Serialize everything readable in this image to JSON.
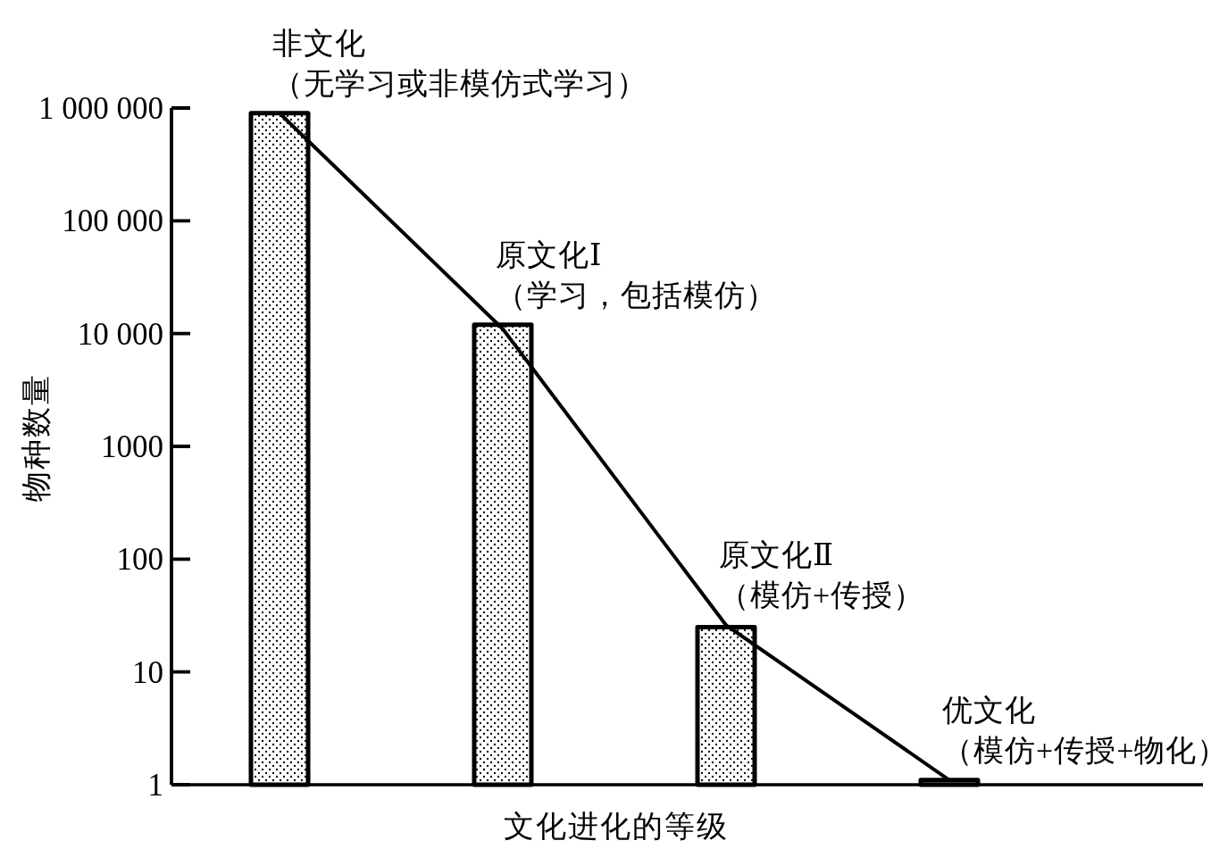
{
  "chart_data": {
    "type": "bar",
    "xlabel": "文化进化的等级",
    "ylabel": "物种数量",
    "categories": [
      null,
      null,
      null,
      null
    ],
    "series": [
      {
        "color": "#000000",
        "values": [
          900000,
          12000,
          25,
          1.1
        ]
      },
      {
        "type": "line",
        "color": "#000000",
        "values": [
          900000,
          11000,
          26,
          1.1
        ]
      }
    ],
    "annotations": [
      "非文化（无学习或非模仿式学习）",
      "原文化Ⅰ（学习，包括模仿）",
      "原文化Ⅱ（模仿+传授）",
      "优文化（模仿+传授+物化）"
    ],
    "log": "y",
    "ylim": [
      1,
      1000000
    ],
    "yticks": [
      {
        "value": 1000000,
        "label": "1 000 000"
      },
      {
        "value": 100000,
        "label": "100 000"
      },
      {
        "value": 10000,
        "label": "10 000"
      },
      1000,
      100,
      10,
      1
    ],
    "line_style": "solid"
  }
}
